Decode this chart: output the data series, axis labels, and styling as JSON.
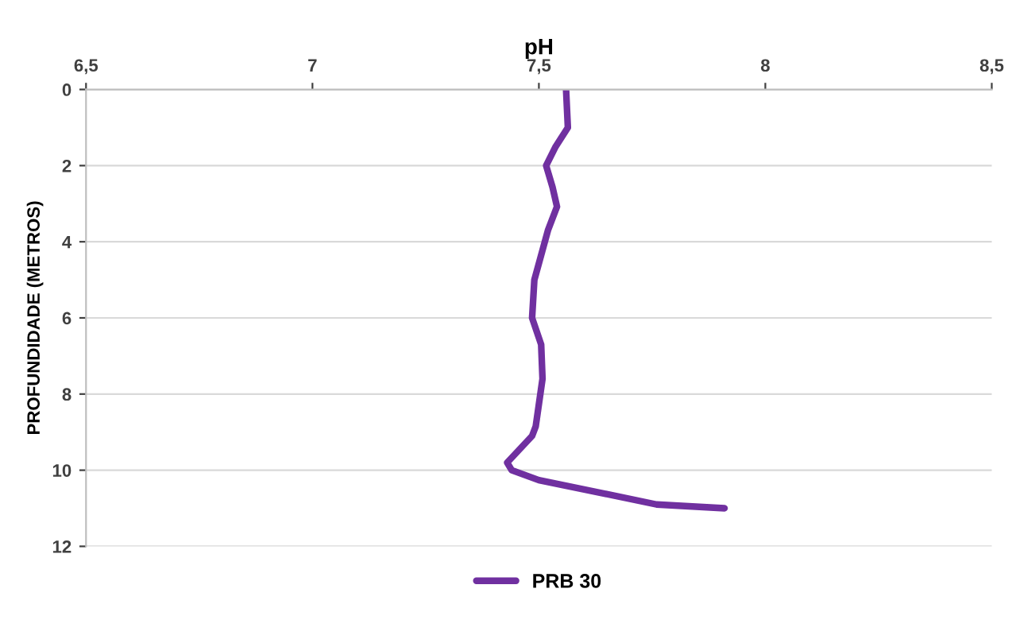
{
  "chart_data": {
    "type": "line",
    "xlabel": "pH",
    "ylabel": "PROFUNDIDADE (METROS)",
    "xlim": [
      6.5,
      8.5
    ],
    "xticks": [
      {
        "value": 6.5,
        "label": "6,5"
      },
      7,
      {
        "value": 7.5,
        "label": "7,5"
      },
      8,
      {
        "value": 8.5,
        "label": "8,5"
      }
    ],
    "ylim": [
      12,
      0
    ],
    "yticks": [
      0,
      2,
      4,
      6,
      8,
      10,
      12
    ],
    "grid": "y",
    "legend": "bottom",
    "marker": "none",
    "line_style": "solid",
    "series": [
      {
        "name": "PRB 30",
        "color": "#7030a0",
        "x": [
          7.56,
          7.564,
          7.537,
          7.516,
          7.53,
          7.54,
          7.52,
          7.49,
          7.485,
          7.505,
          7.508,
          7.493,
          7.485,
          7.43,
          7.44,
          7.5,
          7.76,
          7.91
        ],
        "values": [
          0,
          1.0,
          1.5,
          2.0,
          2.56,
          3.08,
          3.7,
          5.0,
          6.0,
          6.7,
          7.6,
          8.85,
          9.1,
          9.8,
          10.0,
          10.26,
          10.9,
          11.0
        ]
      }
    ]
  }
}
